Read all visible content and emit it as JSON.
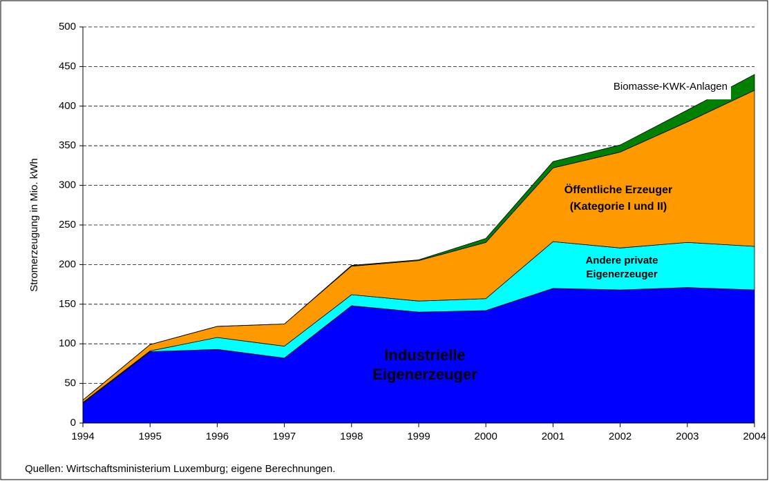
{
  "chart_data": {
    "type": "area",
    "y_label": "Stromerzeugung in Mio. kWh",
    "source": "Quellen: Wirtschaftsministerium Luxemburg; eigene Berechnungen.",
    "x": [
      1994,
      1995,
      1996,
      1997,
      1998,
      1999,
      2000,
      2001,
      2002,
      2003,
      2004
    ],
    "xlim": [
      1994,
      2004
    ],
    "xticks": [
      1994,
      1995,
      1996,
      1997,
      1998,
      1999,
      2000,
      2001,
      2002,
      2003,
      2004
    ],
    "ylim": [
      0,
      500
    ],
    "yticks": [
      0,
      50,
      100,
      150,
      200,
      250,
      300,
      350,
      400,
      450,
      500
    ],
    "grid": true,
    "stacked": true,
    "series": [
      {
        "name": "Industrielle Eigenerzeuger",
        "color": "#0000ff",
        "values": [
          25,
          90,
          93,
          82,
          148,
          140,
          142,
          170,
          168,
          171,
          168
        ]
      },
      {
        "name": "Andere private Eigenerzeuger",
        "color": "#00ffff",
        "values": [
          1,
          1,
          15,
          15,
          14,
          14,
          15,
          59,
          53,
          57,
          55
        ]
      },
      {
        "name": "Öffentliche Erzeuger (Kategorie I und II)",
        "color": "#ff9900",
        "values": [
          3,
          8,
          14,
          28,
          36,
          51,
          71,
          93,
          121,
          152,
          197
        ]
      },
      {
        "name": "Biomasse-KWK-Anlagen",
        "color": "#008000",
        "values": [
          0,
          0,
          0,
          0,
          1,
          1,
          5,
          8,
          9,
          15,
          20
        ]
      }
    ]
  }
}
